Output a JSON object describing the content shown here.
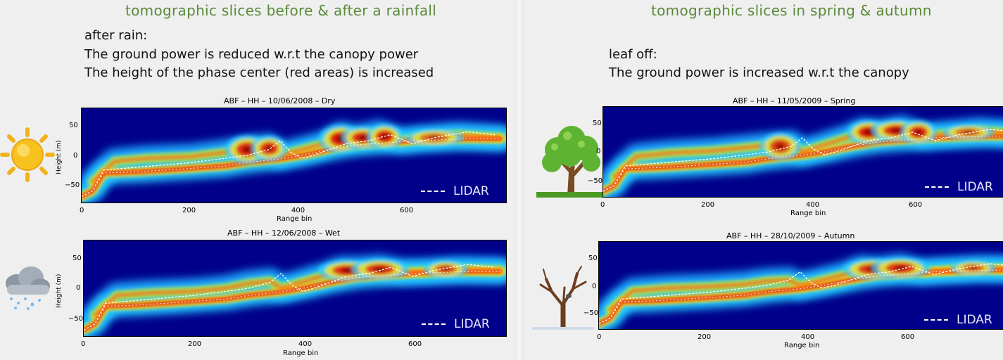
{
  "left": {
    "title": "tomographic slices before & after a rainfall",
    "desc": [
      "after rain:",
      "The ground power is reduced w.r.t the canopy power",
      "The height of the phase center (red areas) is increased"
    ]
  },
  "right": {
    "title": "tomographic slices in spring & autumn",
    "desc": [
      "leaf off:",
      "The ground power is increased w.r.t the canopy"
    ]
  },
  "icons": [
    "sun-icon",
    "rain-cloud-icon",
    "leafy-tree-icon",
    "bare-tree-icon"
  ],
  "colors": {
    "title_green": "#5a8a3a",
    "background_blue": "#00008a",
    "lidar_line": "#ffffff"
  },
  "chart_data": [
    {
      "type": "heatmap",
      "title": "ABF – HH – 10/06/2008 – Dry",
      "xlabel": "Range bin",
      "ylabel": "Height (m)",
      "xlim": [
        0,
        770
      ],
      "ylim": [
        -80,
        80
      ],
      "xticks": [
        "0",
        "200",
        "400",
        "600"
      ],
      "yticks": [
        "50",
        "0",
        "−50"
      ],
      "legend": "LIDAR",
      "lidar": {
        "x": [
          0,
          20,
          40,
          100,
          200,
          260,
          300,
          340,
          360,
          380,
          400,
          420,
          450,
          480,
          520,
          560,
          600,
          640,
          700,
          750
        ],
        "y": [
          -70,
          -60,
          -25,
          -20,
          -12,
          -5,
          0,
          10,
          25,
          5,
          -5,
          0,
          10,
          20,
          25,
          35,
          20,
          30,
          40,
          35
        ]
      },
      "ground": {
        "x": [
          0,
          20,
          40,
          100,
          200,
          260,
          300,
          340,
          360,
          400,
          450,
          500,
          560,
          600,
          700,
          760
        ],
        "y": [
          -70,
          -60,
          -30,
          -28,
          -22,
          -18,
          -12,
          -8,
          -6,
          0,
          10,
          18,
          22,
          25,
          28,
          28
        ]
      },
      "canopy": {
        "x": [
          20,
          60,
          120,
          200,
          260,
          300,
          340,
          360,
          440,
          470,
          500,
          540,
          580,
          620,
          680,
          760
        ],
        "y": [
          -45,
          -10,
          -5,
          -2,
          5,
          12,
          15,
          0,
          20,
          35,
          30,
          38,
          25,
          30,
          35,
          30
        ]
      },
      "blobs": [
        {
          "x": 300,
          "y": 10,
          "w": 30,
          "h": 25,
          "i": 0.9
        },
        {
          "x": 340,
          "y": 12,
          "w": 25,
          "h": 22,
          "i": 0.85
        },
        {
          "x": 470,
          "y": 28,
          "w": 30,
          "h": 25,
          "i": 1.0
        },
        {
          "x": 510,
          "y": 30,
          "w": 30,
          "h": 20,
          "i": 0.9
        },
        {
          "x": 550,
          "y": 32,
          "w": 25,
          "h": 22,
          "i": 0.95
        },
        {
          "x": 640,
          "y": 30,
          "w": 40,
          "h": 15,
          "i": 0.6
        }
      ]
    },
    {
      "type": "heatmap",
      "title": "ABF – HH – 12/06/2008 – Wet",
      "xlabel": "Range bin",
      "ylabel": "Height (m)",
      "xlim": [
        0,
        770
      ],
      "ylim": [
        -80,
        80
      ],
      "xticks": [
        "0",
        "200",
        "400",
        "600"
      ],
      "yticks": [
        "50",
        "0",
        "−50"
      ],
      "legend": "LIDAR",
      "lidar": {
        "x": [
          0,
          20,
          40,
          100,
          200,
          260,
          300,
          340,
          360,
          380,
          400,
          420,
          450,
          480,
          520,
          560,
          600,
          640,
          700,
          750
        ],
        "y": [
          -70,
          -60,
          -25,
          -20,
          -12,
          -5,
          0,
          10,
          25,
          5,
          -5,
          0,
          10,
          20,
          25,
          35,
          20,
          30,
          40,
          35
        ]
      },
      "ground": {
        "x": [
          0,
          20,
          40,
          100,
          200,
          260,
          300,
          340,
          360,
          400,
          450,
          500,
          560,
          600,
          700,
          760
        ],
        "y": [
          -70,
          -60,
          -30,
          -28,
          -22,
          -18,
          -12,
          -8,
          -6,
          0,
          10,
          18,
          22,
          25,
          28,
          28
        ]
      },
      "canopy": {
        "x": [
          20,
          60,
          120,
          200,
          260,
          300,
          340,
          360,
          440,
          470,
          500,
          540,
          580,
          620,
          680,
          760
        ],
        "y": [
          -45,
          -12,
          -8,
          -5,
          0,
          8,
          12,
          0,
          22,
          32,
          32,
          35,
          28,
          28,
          32,
          30
        ]
      },
      "blobs": [
        {
          "x": 480,
          "y": 30,
          "w": 40,
          "h": 18,
          "i": 0.9
        },
        {
          "x": 540,
          "y": 32,
          "w": 40,
          "h": 18,
          "i": 0.85
        },
        {
          "x": 660,
          "y": 32,
          "w": 30,
          "h": 15,
          "i": 0.7
        }
      ]
    },
    {
      "type": "heatmap",
      "title": "ABF – HH – 11/05/2009 – Spring",
      "xlabel": "Range bin",
      "ylabel": "",
      "xlim": [
        0,
        770
      ],
      "ylim": [
        -80,
        80
      ],
      "xticks": [
        "0",
        "200",
        "400",
        "600"
      ],
      "yticks": [
        "50",
        "0",
        "−50"
      ],
      "legend": "LIDAR",
      "lidar": {
        "x": [
          0,
          20,
          40,
          100,
          200,
          260,
          300,
          340,
          360,
          380,
          400,
          420,
          450,
          480,
          520,
          560,
          600,
          640,
          700,
          750
        ],
        "y": [
          -70,
          -60,
          -25,
          -20,
          -12,
          -5,
          0,
          10,
          25,
          5,
          -5,
          0,
          10,
          20,
          25,
          35,
          20,
          30,
          40,
          35
        ]
      },
      "ground": {
        "x": [
          0,
          20,
          40,
          100,
          200,
          260,
          300,
          340,
          360,
          400,
          450,
          500,
          560,
          600,
          700,
          760
        ],
        "y": [
          -70,
          -60,
          -30,
          -28,
          -22,
          -18,
          -12,
          -8,
          -6,
          0,
          10,
          18,
          22,
          25,
          28,
          28
        ]
      },
      "canopy": {
        "x": [
          20,
          60,
          120,
          200,
          260,
          300,
          340,
          360,
          440,
          470,
          500,
          540,
          580,
          620,
          680,
          760
        ],
        "y": [
          -45,
          -8,
          -2,
          2,
          8,
          12,
          15,
          0,
          25,
          38,
          35,
          42,
          28,
          32,
          38,
          32
        ]
      },
      "blobs": [
        {
          "x": 320,
          "y": 10,
          "w": 28,
          "h": 25,
          "i": 0.8
        },
        {
          "x": 480,
          "y": 35,
          "w": 30,
          "h": 22,
          "i": 1.0
        },
        {
          "x": 530,
          "y": 38,
          "w": 35,
          "h": 20,
          "i": 0.95
        },
        {
          "x": 570,
          "y": 35,
          "w": 25,
          "h": 22,
          "i": 0.9
        },
        {
          "x": 660,
          "y": 35,
          "w": 35,
          "h": 14,
          "i": 0.6
        }
      ]
    },
    {
      "type": "heatmap",
      "title": "ABF – HH – 28/10/2009 – Autumn",
      "xlabel": "Range bin",
      "ylabel": "",
      "xlim": [
        0,
        770
      ],
      "ylim": [
        -80,
        80
      ],
      "xticks": [
        "0",
        "200",
        "400",
        "600"
      ],
      "yticks": [
        "50",
        "0",
        "−50"
      ],
      "legend": "LIDAR",
      "lidar": {
        "x": [
          0,
          20,
          40,
          100,
          200,
          260,
          300,
          340,
          360,
          380,
          400,
          420,
          450,
          480,
          520,
          560,
          600,
          640,
          700,
          750
        ],
        "y": [
          -70,
          -60,
          -25,
          -20,
          -12,
          -5,
          0,
          10,
          25,
          5,
          -5,
          0,
          10,
          20,
          25,
          35,
          20,
          30,
          40,
          35
        ]
      },
      "ground": {
        "x": [
          0,
          20,
          40,
          100,
          200,
          260,
          300,
          340,
          360,
          400,
          450,
          500,
          560,
          600,
          700,
          760
        ],
        "y": [
          -70,
          -60,
          -30,
          -28,
          -22,
          -18,
          -12,
          -8,
          -6,
          0,
          10,
          18,
          22,
          25,
          28,
          28
        ]
      },
      "canopy": {
        "x": [
          20,
          60,
          120,
          200,
          260,
          300,
          340,
          360,
          440,
          470,
          500,
          540,
          580,
          620,
          680,
          760
        ],
        "y": [
          -45,
          -10,
          -5,
          -2,
          2,
          8,
          10,
          0,
          20,
          32,
          30,
          35,
          25,
          28,
          32,
          30
        ]
      },
      "blobs": [
        {
          "x": 490,
          "y": 30,
          "w": 40,
          "h": 20,
          "i": 0.85
        },
        {
          "x": 540,
          "y": 32,
          "w": 40,
          "h": 20,
          "i": 0.85
        },
        {
          "x": 670,
          "y": 32,
          "w": 30,
          "h": 14,
          "i": 0.6
        }
      ]
    }
  ]
}
